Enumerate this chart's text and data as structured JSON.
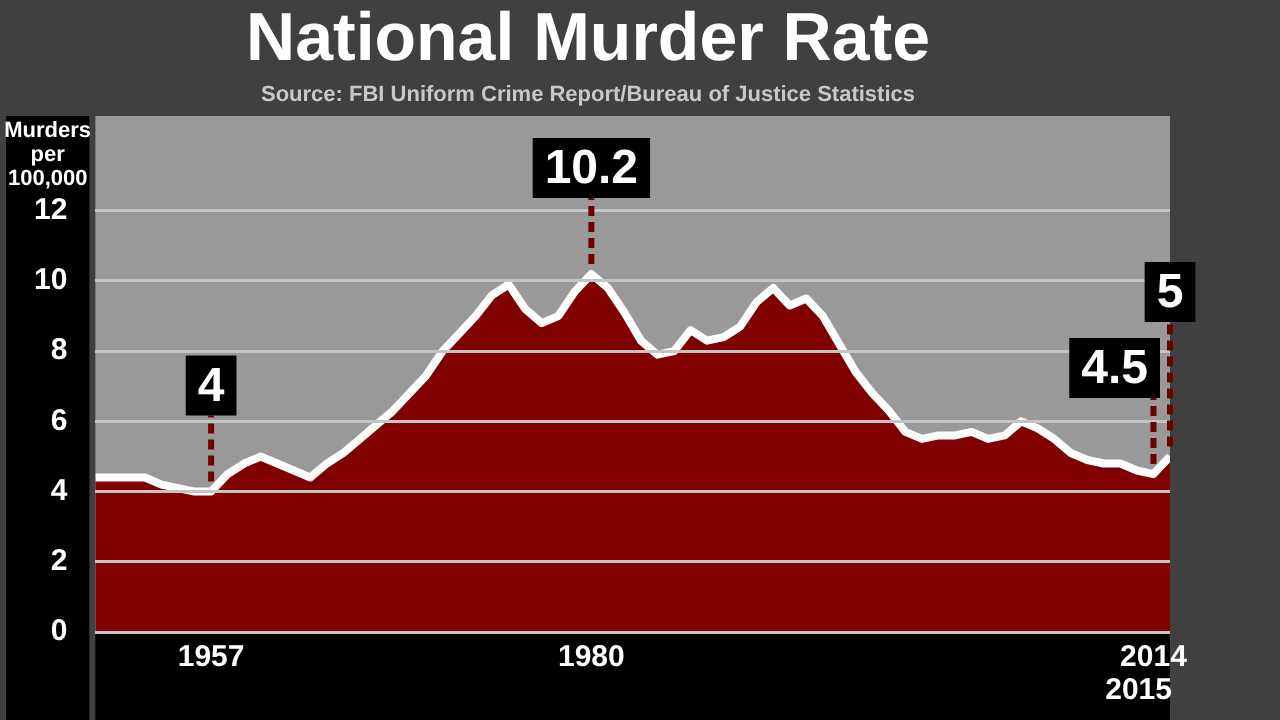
{
  "chart_data": {
    "type": "area",
    "title": "National Murder Rate",
    "subtitle": "Source: FBI Uniform Crime Report/Bureau of Justice Statistics",
    "ylabel": "Murders per 100,000",
    "x": [
      1950,
      1951,
      1952,
      1953,
      1954,
      1955,
      1956,
      1957,
      1958,
      1959,
      1960,
      1961,
      1962,
      1963,
      1964,
      1965,
      1966,
      1967,
      1968,
      1969,
      1970,
      1971,
      1972,
      1973,
      1974,
      1975,
      1976,
      1977,
      1978,
      1979,
      1980,
      1981,
      1982,
      1983,
      1984,
      1985,
      1986,
      1987,
      1988,
      1989,
      1990,
      1991,
      1992,
      1993,
      1994,
      1995,
      1996,
      1997,
      1998,
      1999,
      2000,
      2001,
      2002,
      2003,
      2004,
      2005,
      2006,
      2007,
      2008,
      2009,
      2010,
      2011,
      2012,
      2013,
      2014,
      2015
    ],
    "values": [
      4.4,
      4.4,
      4.4,
      4.4,
      4.2,
      4.1,
      4.0,
      4,
      4.5,
      4.8,
      5.0,
      4.8,
      4.6,
      4.4,
      4.8,
      5.1,
      5.5,
      5.9,
      6.3,
      6.8,
      7.3,
      8.0,
      8.5,
      9.0,
      9.6,
      9.9,
      9.2,
      8.8,
      9.0,
      9.7,
      10.2,
      9.8,
      9.1,
      8.3,
      7.9,
      8.0,
      8.6,
      8.3,
      8.4,
      8.7,
      9.4,
      9.8,
      9.3,
      9.5,
      9.0,
      8.2,
      7.4,
      6.8,
      6.3,
      5.7,
      5.5,
      5.6,
      5.6,
      5.7,
      5.5,
      5.6,
      6.0,
      5.8,
      5.5,
      5.1,
      4.9,
      4.8,
      4.8,
      4.6,
      4.5,
      5
    ],
    "color": "#800000",
    "xlim": [
      1950,
      2015
    ],
    "xticks": [
      1957,
      1980,
      2014
    ],
    "ylim": [
      0,
      14.7
    ],
    "yticks": [
      0,
      2,
      4,
      6,
      8,
      10,
      12
    ],
    "grid": "y",
    "legend": false,
    "marker": "none",
    "annotations": [
      {
        "text": "4",
        "x": 1957,
        "y": 4
      },
      {
        "text": "10.2",
        "x": 1980,
        "y": 10.2
      },
      {
        "text": "4.5",
        "x": 2014,
        "y": 4.5
      },
      {
        "text": "5",
        "x": 2015,
        "y": 5
      },
      "2015"
    ]
  }
}
